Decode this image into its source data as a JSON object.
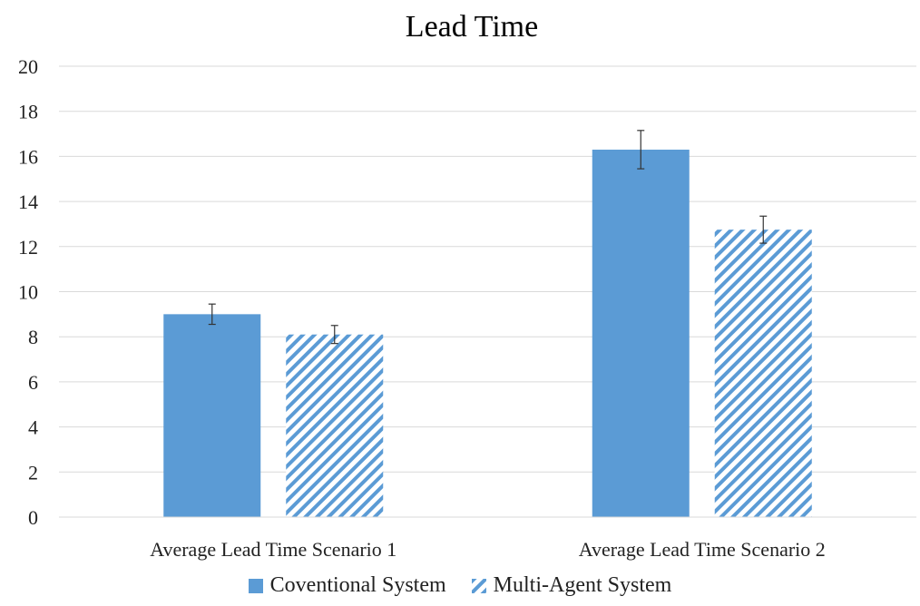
{
  "chart_data": {
    "type": "bar",
    "title": "Lead Time",
    "categories": [
      "Average Lead Time Scenario 1",
      "Average Lead Time Scenario 2"
    ],
    "series": [
      {
        "name": "Coventional System",
        "values": [
          9.0,
          16.3
        ],
        "error": [
          0.45,
          0.85
        ],
        "color": "#5b9bd5",
        "fill": "solid"
      },
      {
        "name": "Multi-Agent System",
        "values": [
          8.1,
          12.75
        ],
        "error": [
          0.4,
          0.6
        ],
        "color": "#5b9bd5",
        "fill": "diagonal-stripes"
      }
    ],
    "ylim": [
      0,
      20
    ],
    "yticks": [
      "0",
      "2",
      "4",
      "6",
      "8",
      "10",
      "12",
      "14",
      "16",
      "18",
      "20"
    ],
    "grid": true,
    "legend_position": "bottom"
  }
}
